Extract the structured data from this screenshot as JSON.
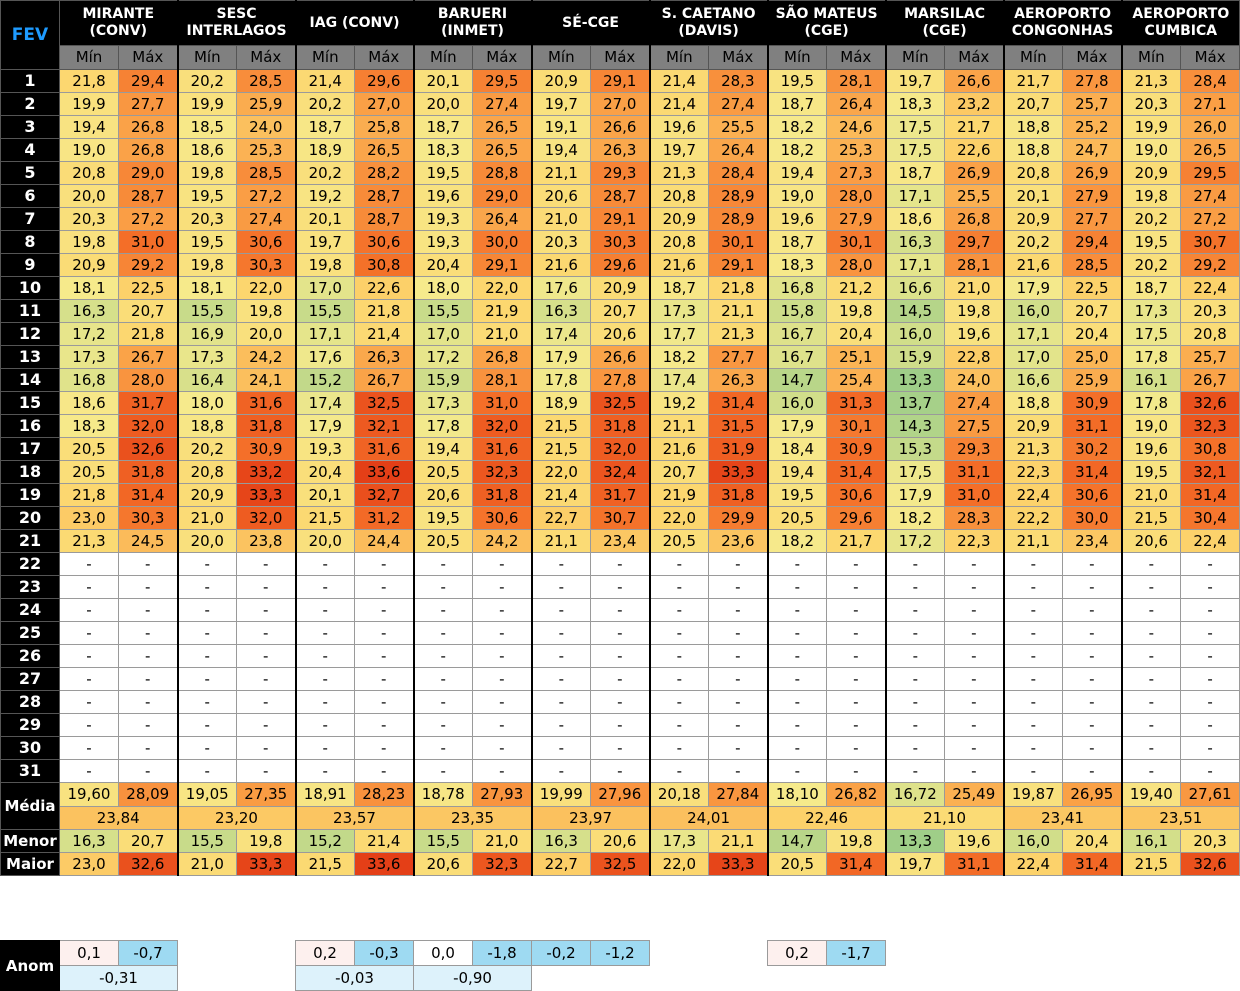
{
  "month_label": "FEV",
  "sub_min": "Mín",
  "sub_max": "Máx",
  "stations": [
    {
      "name": "MIRANTE (CONV)"
    },
    {
      "name": "SESC INTERLAGOS"
    },
    {
      "name": "IAG (CONV)"
    },
    {
      "name": "BARUERI (INMET)"
    },
    {
      "name": "SÉ-CGE"
    },
    {
      "name": "S. CAETANO (DAVIS)"
    },
    {
      "name": "SÃO MATEUS (CGE)"
    },
    {
      "name": "MARSILAC (CGE)"
    },
    {
      "name": "AEROPORTO CONGONHAS"
    },
    {
      "name": "AEROPORTO CUMBICA"
    }
  ],
  "rows": [
    {
      "day": "1",
      "v": [
        "21,8",
        "29,4",
        "20,2",
        "28,5",
        "21,4",
        "29,6",
        "20,1",
        "29,5",
        "20,9",
        "29,1",
        "21,4",
        "28,3",
        "19,5",
        "28,1",
        "19,7",
        "26,6",
        "21,7",
        "27,8",
        "21,3",
        "28,4"
      ]
    },
    {
      "day": "2",
      "v": [
        "19,9",
        "27,7",
        "19,9",
        "25,9",
        "20,2",
        "27,0",
        "20,0",
        "27,4",
        "19,7",
        "27,0",
        "21,4",
        "27,4",
        "18,7",
        "26,4",
        "18,3",
        "23,2",
        "20,7",
        "25,7",
        "20,3",
        "27,1"
      ]
    },
    {
      "day": "3",
      "v": [
        "19,4",
        "26,8",
        "18,5",
        "24,0",
        "18,7",
        "25,8",
        "18,7",
        "26,5",
        "19,1",
        "26,6",
        "19,6",
        "25,5",
        "18,2",
        "24,6",
        "17,5",
        "21,7",
        "18,8",
        "25,2",
        "19,9",
        "26,0"
      ]
    },
    {
      "day": "4",
      "v": [
        "19,0",
        "26,8",
        "18,6",
        "25,3",
        "18,9",
        "26,5",
        "18,3",
        "26,5",
        "19,4",
        "26,3",
        "19,7",
        "26,4",
        "18,2",
        "25,3",
        "17,5",
        "22,6",
        "18,8",
        "24,7",
        "19,0",
        "26,5"
      ]
    },
    {
      "day": "5",
      "v": [
        "20,8",
        "29,0",
        "19,8",
        "28,5",
        "20,2",
        "28,2",
        "19,5",
        "28,8",
        "21,1",
        "29,3",
        "21,3",
        "28,4",
        "19,4",
        "27,3",
        "18,7",
        "26,9",
        "20,8",
        "26,9",
        "20,9",
        "29,5"
      ]
    },
    {
      "day": "6",
      "v": [
        "20,0",
        "28,7",
        "19,5",
        "27,2",
        "19,2",
        "28,7",
        "19,6",
        "29,0",
        "20,6",
        "28,7",
        "20,8",
        "28,9",
        "19,0",
        "28,0",
        "17,1",
        "25,5",
        "20,1",
        "27,9",
        "19,8",
        "27,4"
      ]
    },
    {
      "day": "7",
      "v": [
        "20,3",
        "27,2",
        "20,3",
        "27,4",
        "20,1",
        "28,7",
        "19,3",
        "26,4",
        "21,0",
        "29,1",
        "20,9",
        "28,9",
        "19,6",
        "27,9",
        "18,6",
        "26,8",
        "20,9",
        "27,7",
        "20,2",
        "27,2"
      ]
    },
    {
      "day": "8",
      "v": [
        "19,8",
        "31,0",
        "19,5",
        "30,6",
        "19,7",
        "30,6",
        "19,3",
        "30,0",
        "20,3",
        "30,3",
        "20,8",
        "30,1",
        "18,7",
        "30,1",
        "16,3",
        "29,7",
        "20,2",
        "29,4",
        "19,5",
        "30,7"
      ]
    },
    {
      "day": "9",
      "v": [
        "20,9",
        "29,2",
        "19,8",
        "30,3",
        "19,8",
        "30,8",
        "20,4",
        "29,1",
        "21,6",
        "29,6",
        "21,6",
        "29,1",
        "18,3",
        "28,0",
        "17,1",
        "28,1",
        "21,6",
        "28,5",
        "20,2",
        "29,2"
      ]
    },
    {
      "day": "10",
      "v": [
        "18,1",
        "22,5",
        "18,1",
        "22,0",
        "17,0",
        "22,6",
        "18,0",
        "22,0",
        "17,6",
        "20,9",
        "18,7",
        "21,8",
        "16,8",
        "21,2",
        "16,6",
        "21,0",
        "17,9",
        "22,5",
        "18,7",
        "22,4"
      ]
    },
    {
      "day": "11",
      "v": [
        "16,3",
        "20,7",
        "15,5",
        "19,8",
        "15,5",
        "21,8",
        "15,5",
        "21,9",
        "16,3",
        "20,7",
        "17,3",
        "21,1",
        "15,8",
        "19,8",
        "14,5",
        "19,8",
        "16,0",
        "20,7",
        "17,3",
        "20,3"
      ]
    },
    {
      "day": "12",
      "v": [
        "17,2",
        "21,8",
        "16,9",
        "20,0",
        "17,1",
        "21,4",
        "17,0",
        "21,0",
        "17,4",
        "20,6",
        "17,7",
        "21,3",
        "16,7",
        "20,4",
        "16,0",
        "19,6",
        "17,1",
        "20,4",
        "17,5",
        "20,8"
      ]
    },
    {
      "day": "13",
      "v": [
        "17,3",
        "26,7",
        "17,3",
        "24,2",
        "17,6",
        "26,3",
        "17,2",
        "26,8",
        "17,9",
        "26,6",
        "18,2",
        "27,7",
        "16,7",
        "25,1",
        "15,9",
        "22,8",
        "17,0",
        "25,0",
        "17,8",
        "25,7"
      ]
    },
    {
      "day": "14",
      "v": [
        "16,8",
        "28,0",
        "16,4",
        "24,1",
        "15,2",
        "26,7",
        "15,9",
        "28,1",
        "17,8",
        "27,8",
        "17,4",
        "26,3",
        "14,7",
        "25,4",
        "13,3",
        "24,0",
        "16,6",
        "25,9",
        "16,1",
        "26,7"
      ]
    },
    {
      "day": "15",
      "v": [
        "18,6",
        "31,7",
        "18,0",
        "31,6",
        "17,4",
        "32,5",
        "17,3",
        "31,0",
        "18,9",
        "32,5",
        "19,2",
        "31,4",
        "16,0",
        "31,3",
        "13,7",
        "27,4",
        "18,8",
        "30,9",
        "17,8",
        "32,6"
      ]
    },
    {
      "day": "16",
      "v": [
        "18,3",
        "32,0",
        "18,8",
        "31,8",
        "17,9",
        "32,1",
        "17,8",
        "32,0",
        "21,5",
        "31,8",
        "21,1",
        "31,5",
        "17,9",
        "30,1",
        "14,3",
        "27,5",
        "20,9",
        "31,1",
        "19,0",
        "32,3"
      ]
    },
    {
      "day": "17",
      "v": [
        "20,5",
        "32,6",
        "20,2",
        "30,9",
        "19,3",
        "31,6",
        "19,4",
        "31,6",
        "21,5",
        "32,0",
        "21,6",
        "31,9",
        "18,4",
        "30,9",
        "15,3",
        "29,3",
        "21,3",
        "30,2",
        "19,6",
        "30,8"
      ]
    },
    {
      "day": "18",
      "v": [
        "20,5",
        "31,8",
        "20,8",
        "33,2",
        "20,4",
        "33,6",
        "20,5",
        "32,3",
        "22,0",
        "32,4",
        "20,7",
        "33,3",
        "19,4",
        "31,4",
        "17,5",
        "31,1",
        "22,3",
        "31,4",
        "19,5",
        "32,1"
      ]
    },
    {
      "day": "19",
      "v": [
        "21,8",
        "31,4",
        "20,9",
        "33,3",
        "20,1",
        "32,7",
        "20,6",
        "31,8",
        "21,4",
        "31,7",
        "21,9",
        "31,8",
        "19,5",
        "30,6",
        "17,9",
        "31,0",
        "22,4",
        "30,6",
        "21,0",
        "31,4"
      ]
    },
    {
      "day": "20",
      "v": [
        "23,0",
        "30,3",
        "21,0",
        "32,0",
        "21,5",
        "31,2",
        "19,5",
        "30,6",
        "22,7",
        "30,7",
        "22,0",
        "29,9",
        "20,5",
        "29,6",
        "18,2",
        "28,3",
        "22,2",
        "30,0",
        "21,5",
        "30,4"
      ]
    },
    {
      "day": "21",
      "v": [
        "21,3",
        "24,5",
        "20,0",
        "23,8",
        "20,0",
        "24,4",
        "20,5",
        "24,2",
        "21,1",
        "23,4",
        "20,5",
        "23,6",
        "18,2",
        "21,7",
        "17,2",
        "22,3",
        "21,1",
        "23,4",
        "20,6",
        "22,4"
      ]
    },
    {
      "day": "22",
      "v": [
        "-",
        "-",
        "-",
        "-",
        "-",
        "-",
        "-",
        "-",
        "-",
        "-",
        "-",
        "-",
        "-",
        "-",
        "-",
        "-",
        "-",
        "-",
        "-",
        "-"
      ]
    },
    {
      "day": "23",
      "v": [
        "-",
        "-",
        "-",
        "-",
        "-",
        "-",
        "-",
        "-",
        "-",
        "-",
        "-",
        "-",
        "-",
        "-",
        "-",
        "-",
        "-",
        "-",
        "-",
        "-"
      ]
    },
    {
      "day": "24",
      "v": [
        "-",
        "-",
        "-",
        "-",
        "-",
        "-",
        "-",
        "-",
        "-",
        "-",
        "-",
        "-",
        "-",
        "-",
        "-",
        "-",
        "-",
        "-",
        "-",
        "-"
      ]
    },
    {
      "day": "25",
      "v": [
        "-",
        "-",
        "-",
        "-",
        "-",
        "-",
        "-",
        "-",
        "-",
        "-",
        "-",
        "-",
        "-",
        "-",
        "-",
        "-",
        "-",
        "-",
        "-",
        "-"
      ]
    },
    {
      "day": "26",
      "v": [
        "-",
        "-",
        "-",
        "-",
        "-",
        "-",
        "-",
        "-",
        "-",
        "-",
        "-",
        "-",
        "-",
        "-",
        "-",
        "-",
        "-",
        "-",
        "-",
        "-"
      ]
    },
    {
      "day": "27",
      "v": [
        "-",
        "-",
        "-",
        "-",
        "-",
        "-",
        "-",
        "-",
        "-",
        "-",
        "-",
        "-",
        "-",
        "-",
        "-",
        "-",
        "-",
        "-",
        "-",
        "-"
      ]
    },
    {
      "day": "28",
      "v": [
        "-",
        "-",
        "-",
        "-",
        "-",
        "-",
        "-",
        "-",
        "-",
        "-",
        "-",
        "-",
        "-",
        "-",
        "-",
        "-",
        "-",
        "-",
        "-",
        "-"
      ]
    },
    {
      "day": "29",
      "v": [
        "-",
        "-",
        "-",
        "-",
        "-",
        "-",
        "-",
        "-",
        "-",
        "-",
        "-",
        "-",
        "-",
        "-",
        "-",
        "-",
        "-",
        "-",
        "-",
        "-"
      ]
    },
    {
      "day": "30",
      "v": [
        "-",
        "-",
        "-",
        "-",
        "-",
        "-",
        "-",
        "-",
        "-",
        "-",
        "-",
        "-",
        "-",
        "-",
        "-",
        "-",
        "-",
        "-",
        "-",
        "-"
      ]
    },
    {
      "day": "31",
      "v": [
        "-",
        "-",
        "-",
        "-",
        "-",
        "-",
        "-",
        "-",
        "-",
        "-",
        "-",
        "-",
        "-",
        "-",
        "-",
        "-",
        "-",
        "-",
        "-",
        "-"
      ]
    }
  ],
  "media": {
    "label": "Média",
    "v": [
      "19,60",
      "28,09",
      "19,05",
      "27,35",
      "18,91",
      "28,23",
      "18,78",
      "27,93",
      "19,99",
      "27,96",
      "20,18",
      "27,84",
      "18,10",
      "26,82",
      "16,72",
      "25,49",
      "19,87",
      "26,95",
      "19,40",
      "27,61"
    ],
    "avg": [
      "23,84",
      "23,20",
      "23,57",
      "23,35",
      "23,97",
      "24,01",
      "22,46",
      "21,10",
      "23,41",
      "23,51"
    ]
  },
  "menor": {
    "label": "Menor",
    "v": [
      "16,3",
      "20,7",
      "15,5",
      "19,8",
      "15,2",
      "21,4",
      "15,5",
      "21,0",
      "16,3",
      "20,6",
      "17,3",
      "21,1",
      "14,7",
      "19,8",
      "13,3",
      "19,6",
      "16,0",
      "20,4",
      "16,1",
      "20,3"
    ]
  },
  "maior": {
    "label": "Maior",
    "v": [
      "23,0",
      "32,6",
      "21,0",
      "33,3",
      "21,5",
      "33,6",
      "20,6",
      "32,3",
      "22,7",
      "32,5",
      "22,0",
      "33,3",
      "20,5",
      "31,4",
      "19,7",
      "31,1",
      "22,4",
      "31,4",
      "21,5",
      "32,6"
    ]
  },
  "anom": {
    "label": "Anom",
    "cells": [
      {
        "col": 0,
        "min": "0,1",
        "max": "-0,7",
        "avg": "-0,31"
      },
      {
        "col": 2,
        "min": "0,2",
        "max": "-0,3",
        "avg": "-0,03"
      },
      {
        "col": 3,
        "min": "0,0",
        "max": "-1,8",
        "avg": "-0,90"
      },
      {
        "col": 4,
        "min": "-0,2",
        "max": "-1,2",
        "avg": ""
      },
      {
        "col": 6,
        "min": "0,2",
        "max": "-1,7",
        "avg": ""
      }
    ]
  },
  "colors": {
    "header_bg": "#000000",
    "fev_text": "#1e9bff",
    "sub_bg": "#808080",
    "anom_pos": "#fdf0ee",
    "anom_neg": "#9edaf2",
    "anom_zero": "#ffffff",
    "anom_avg": "#ddf2fb"
  }
}
